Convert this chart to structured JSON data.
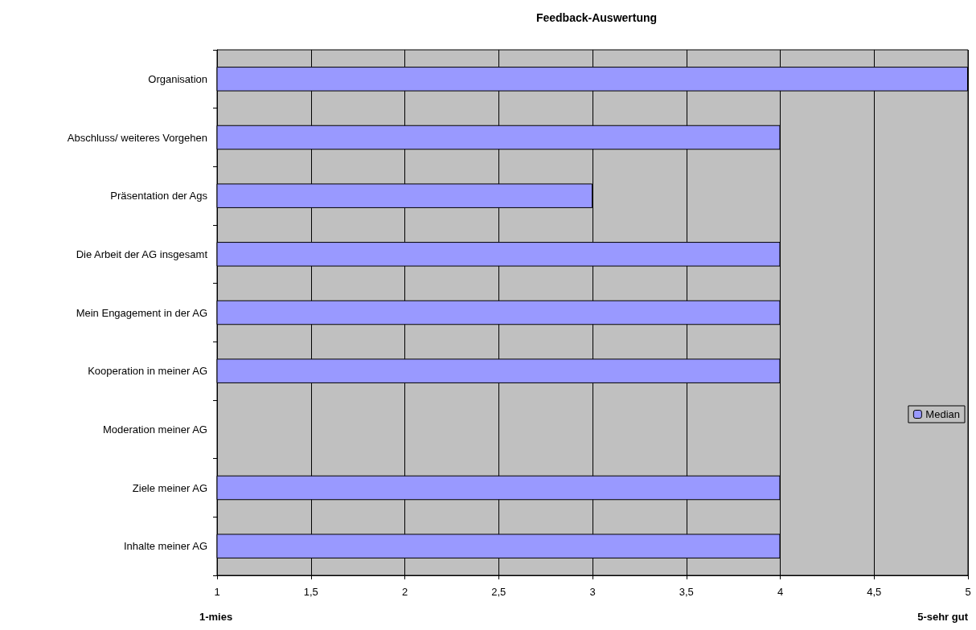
{
  "chart_data": {
    "type": "bar",
    "orientation": "horizontal",
    "title": "Feedback-Auswertung",
    "categories": [
      "Organisation",
      "Abschluss/ weiteres Vorgehen",
      "Präsentation der Ags",
      "Die Arbeit der AG insgesamt",
      "Mein Engagement in der AG",
      "Kooperation in meiner AG",
      "Moderation meiner AG",
      "Ziele meiner AG",
      "Inhalte meiner AG"
    ],
    "series": [
      {
        "name": "Median",
        "color": "#9999ff",
        "values": [
          5,
          4,
          3,
          4,
          4,
          4,
          null,
          4,
          4
        ]
      }
    ],
    "xlim": [
      1,
      5
    ],
    "xticks": [
      1,
      {
        "value": 1.5,
        "label": "1,5"
      },
      2,
      {
        "value": 2.5,
        "label": "2,5"
      },
      3,
      {
        "value": 3.5,
        "label": "3,5"
      },
      4,
      {
        "value": 4.5,
        "label": "4,5"
      },
      5
    ],
    "grid": "x",
    "legend": "right",
    "annotations": [
      "1-mies",
      "5-sehr gut"
    ]
  }
}
